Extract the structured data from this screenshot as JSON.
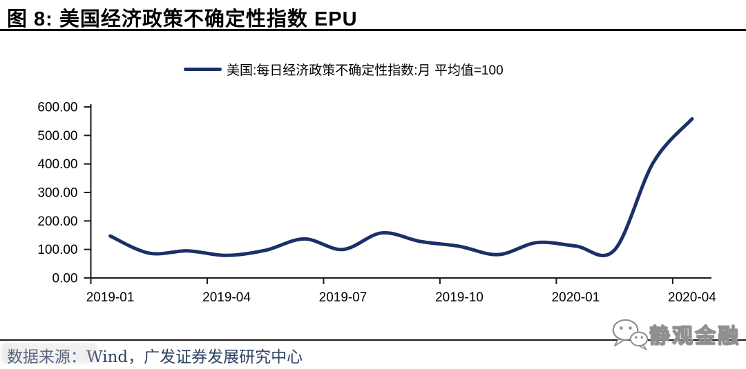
{
  "header": {
    "title": "图 8:  美国经济政策不确定性指数 EPU"
  },
  "legend": {
    "label": "美国:每日经济政策不确定性指数:月 平均值=100"
  },
  "chart_data": {
    "type": "line",
    "smooth": true,
    "grid": false,
    "legend_position": "top-center",
    "title": "美国经济政策不确定性指数 EPU",
    "x": [
      "2019-01",
      "2019-02",
      "2019-03",
      "2019-04",
      "2019-05",
      "2019-06",
      "2019-07",
      "2019-08",
      "2019-09",
      "2019-10",
      "2019-11",
      "2019-12",
      "2020-01",
      "2020-02",
      "2020-03",
      "2020-04"
    ],
    "series": [
      {
        "name": "美国:每日经济政策不确定性指数:月 平均值=100",
        "values": [
          147,
          87,
          95,
          79,
          97,
          137,
          100,
          158,
          128,
          111,
          82,
          124,
          112,
          98,
          405,
          558
        ]
      }
    ],
    "x_tick_labels": [
      "2019-01",
      "2019-04",
      "2019-07",
      "2019-10",
      "2020-01",
      "2020-04"
    ],
    "y_ticks": [
      600,
      500,
      400,
      300,
      200,
      100,
      0
    ],
    "y_tick_labels": [
      "600.00",
      "500.00",
      "400.00",
      "300.00",
      "200.00",
      "100.00",
      "0.00"
    ],
    "ylim": [
      0,
      600
    ],
    "line_color": "#1b3068"
  },
  "footer": {
    "source": "数据来源：Wind，广发证券发展研究中心",
    "watermark": "静观金融"
  },
  "colors": {
    "line": "#1b3068",
    "axis": "#1a1a1a",
    "tick_text": "#000000",
    "source_text": "#2e4263",
    "title_rule": "#000000"
  }
}
